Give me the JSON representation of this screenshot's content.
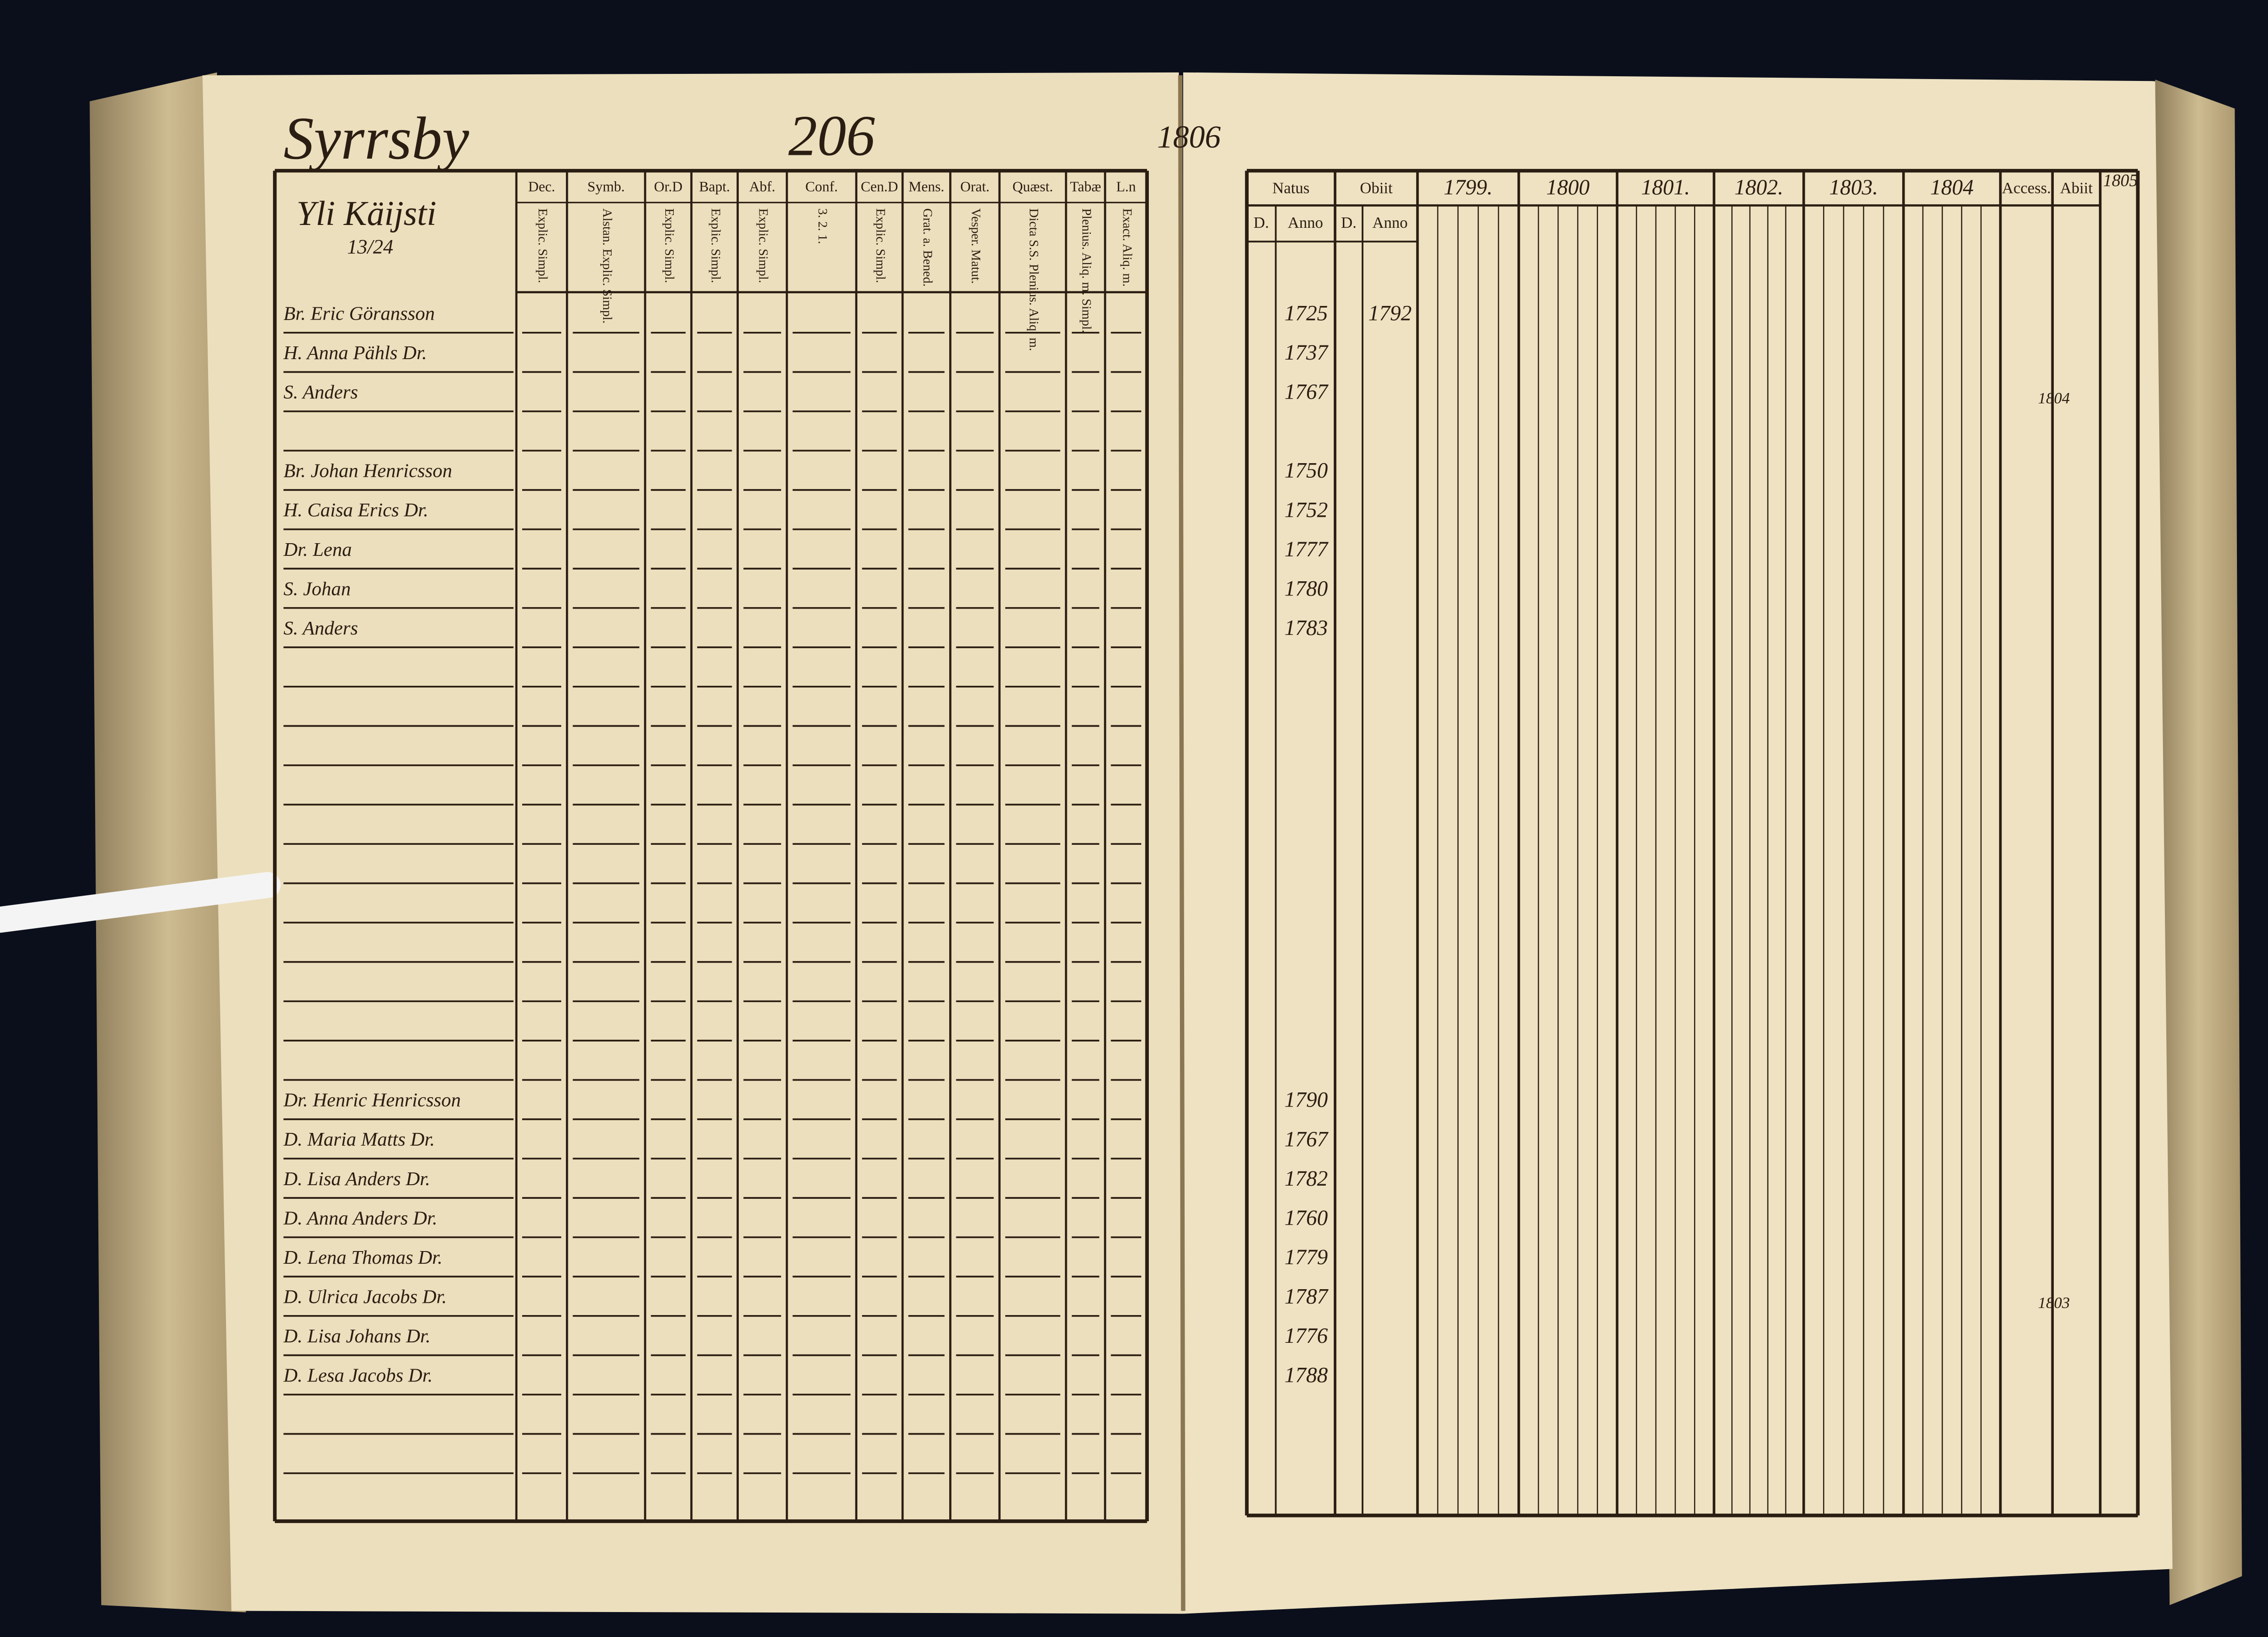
{
  "header": {
    "place": "Syrrsby",
    "page_number": "206",
    "year_mark": "1806",
    "farm": "Yli Käijsti",
    "farm_share": "13/24"
  },
  "left_table": {
    "columns": [
      {
        "label": "Dec.",
        "sub": "Explic. Simpl."
      },
      {
        "label": "Symb.",
        "sub": "Alstan. Explic. Simpl."
      },
      {
        "label": "Or.D",
        "sub": "Explic. Simpl."
      },
      {
        "label": "Bapt.",
        "sub": "Explic. Simpl."
      },
      {
        "label": "Abf.",
        "sub": "Explic. Simpl."
      },
      {
        "label": "Conf.",
        "sub": "3. 2. 1."
      },
      {
        "label": "Cen.D",
        "sub": "Explic. Simpl."
      },
      {
        "label": "Mens.",
        "sub": "Grat. a. Bened."
      },
      {
        "label": "Orat.",
        "sub": "Vesper. Matut."
      },
      {
        "label": "Quæst.",
        "sub": "Dicta S.S. Plenius. Aliq. m."
      },
      {
        "label": "Tabæ",
        "sub": "Plenius. Aliq. m. Simpl."
      },
      {
        "label": "L.n",
        "sub": "Exact. Aliq. m."
      }
    ]
  },
  "right_table": {
    "natus": "Natus",
    "obiit": "Obiit",
    "day": "D.",
    "anno": "Anno",
    "years": [
      "1799.",
      "1800",
      "1801.",
      "1802.",
      "1803.",
      "1804"
    ],
    "accessit": "Access.",
    "abiit": "Abiit",
    "next_year": "1805"
  },
  "rows": [
    {
      "name": "Br. Eric Göransson",
      "born": "1725",
      "died": "1792"
    },
    {
      "name": "H. Anna Pähls Dr.",
      "born": "1737"
    },
    {
      "name": "S. Anders",
      "born": "1767",
      "accessit": "1804"
    },
    null,
    {
      "name": "Br. Johan Henricsson",
      "born": "1750"
    },
    {
      "name": "H. Caisa Erics Dr.",
      "born": "1752"
    },
    {
      "name": "Dr. Lena",
      "born": "1777"
    },
    {
      "name": "S. Johan",
      "born": "1780"
    },
    {
      "name": "S. Anders",
      "born": "1783"
    },
    null,
    null,
    null,
    null,
    null,
    null,
    null,
    null,
    null,
    null,
    null,
    {
      "name": "Dr. Henric Henricsson",
      "born": "1790"
    },
    {
      "name": "D. Maria Matts Dr.",
      "born": "1767"
    },
    {
      "name": "D. Lisa Anders Dr.",
      "born": "1782"
    },
    {
      "name": "D. Anna Anders Dr.",
      "born": "1760"
    },
    {
      "name": "D. Lena Thomas Dr.",
      "born": "1779"
    },
    {
      "name": "D. Ulrica Jacobs Dr.",
      "born": "1787",
      "accessit": "1803"
    },
    {
      "name": "D. Lisa Johans Dr.",
      "born": "1776"
    },
    {
      "name": "D. Lesa Jacobs Dr.",
      "born": "1788"
    }
  ]
}
